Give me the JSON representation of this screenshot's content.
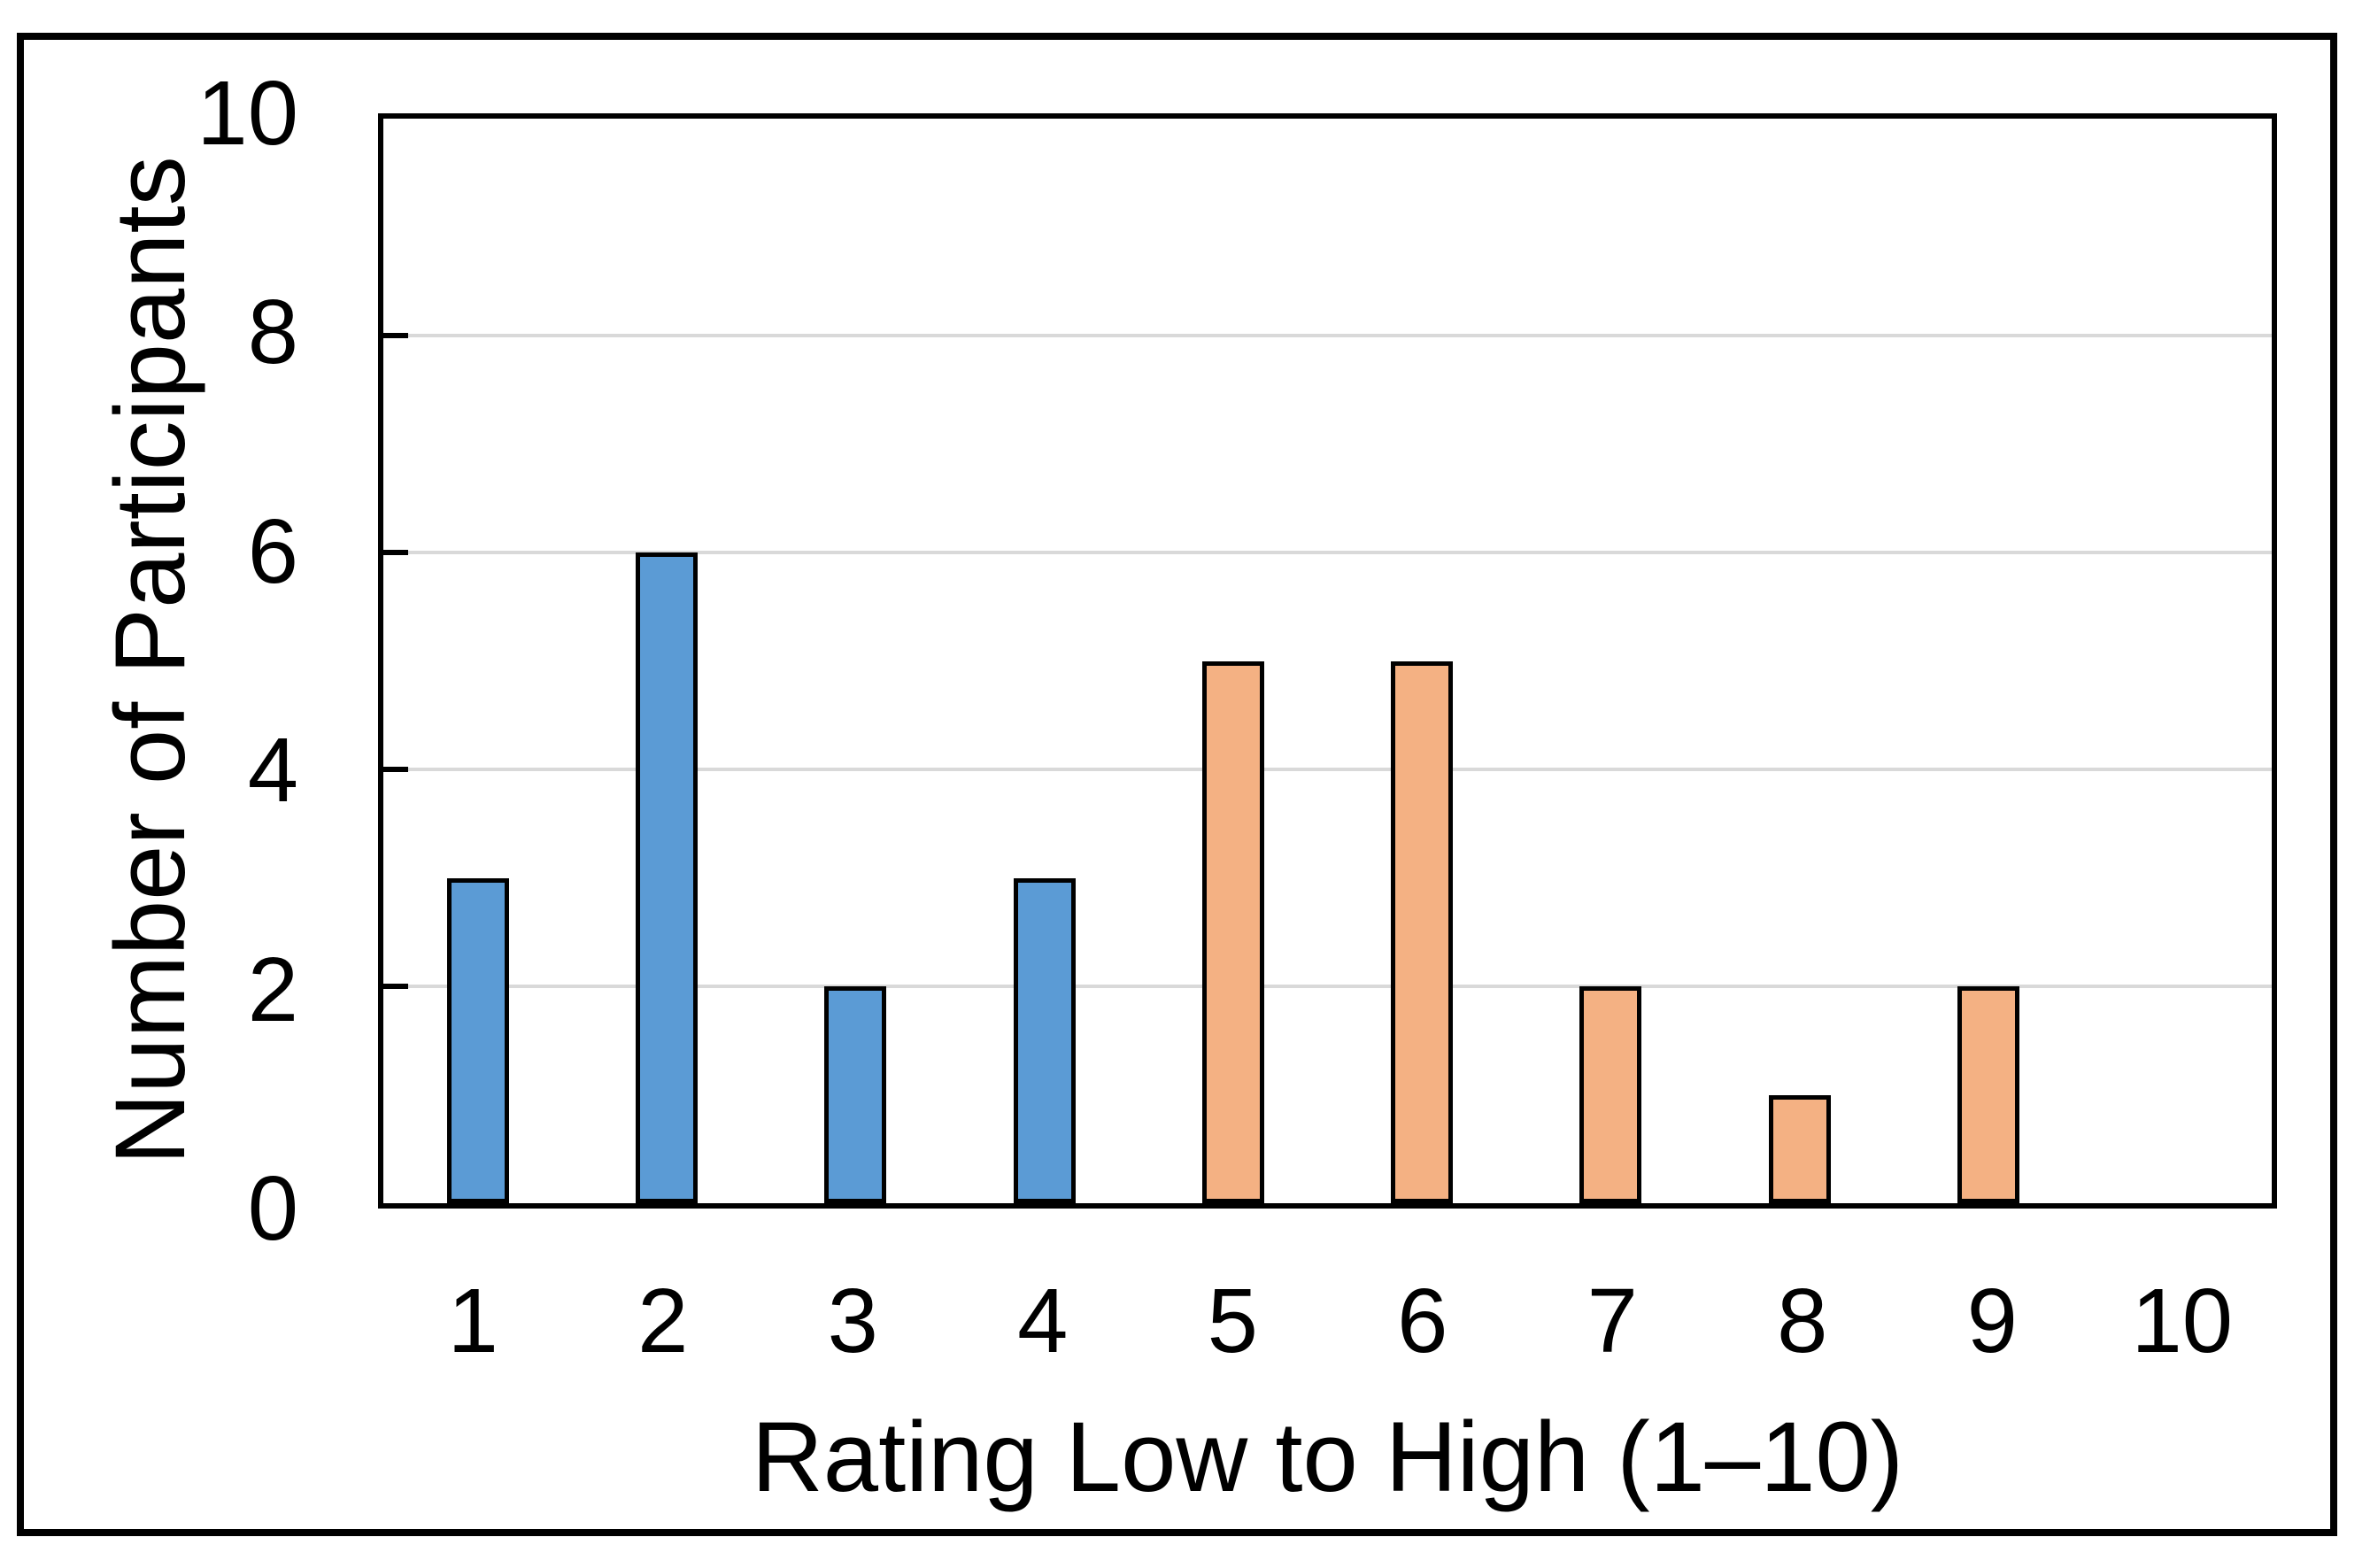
{
  "chart_data": {
    "type": "bar",
    "categories": [
      "1",
      "2",
      "3",
      "4",
      "5",
      "6",
      "7",
      "8",
      "9",
      "10"
    ],
    "values": [
      3,
      6,
      2,
      3,
      5,
      5,
      2,
      1,
      2,
      0
    ],
    "bar_colors": [
      "#5B9BD5",
      "#5B9BD5",
      "#5B9BD5",
      "#5B9BD5",
      "#F4B183",
      "#F4B183",
      "#F4B183",
      "#F4B183",
      "#F4B183",
      "#F4B183"
    ],
    "xlabel": "Rating Low to High (1–10)",
    "ylabel": "Number of Participants",
    "ylim": [
      0,
      10
    ],
    "yticks": [
      0,
      2,
      4,
      6,
      8,
      10
    ],
    "gridline_values": [
      2,
      4,
      6,
      8
    ],
    "grid": true,
    "legend": "none",
    "colors": {
      "blue_bar_fill": "#5B9BD5",
      "orange_bar_fill": "#F4B183",
      "bar_outline": "#000000",
      "gridline": "#D9D9D9",
      "axis": "#000000",
      "background": "#FFFFFF"
    }
  }
}
